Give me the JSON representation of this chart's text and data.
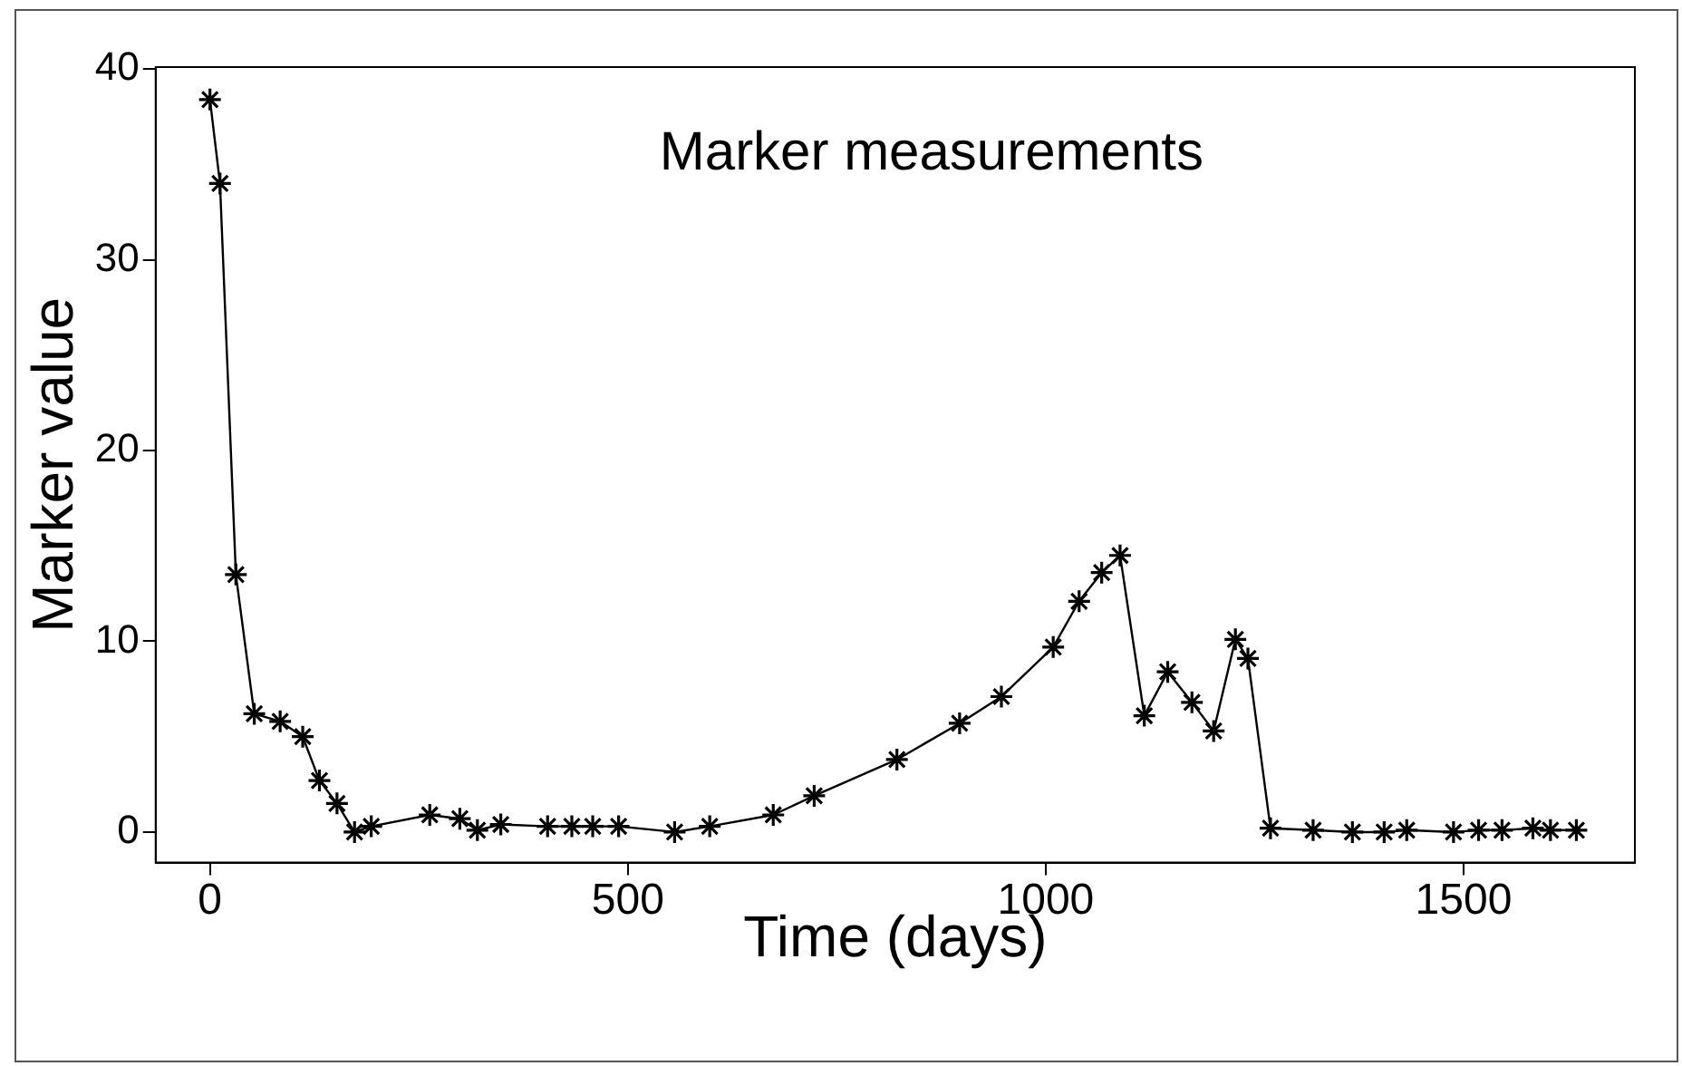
{
  "chart_data": {
    "type": "line",
    "title": "Marker measurements",
    "xlabel": "Time (days)",
    "ylabel": "Marker value",
    "xlim": [
      -65,
      1705
    ],
    "ylim": [
      -1.6,
      40.1
    ],
    "xticks": [
      0,
      500,
      1000,
      1500
    ],
    "yticks": [
      0,
      10,
      20,
      30,
      40
    ],
    "grid": false,
    "legend": false,
    "marker": "cross",
    "line_style": "solid",
    "series": [
      {
        "color": "#000000",
        "x": [
          0,
          12,
          31,
          53,
          84,
          111,
          131,
          152,
          173,
          193,
          263,
          299,
          320,
          348,
          404,
          433,
          458,
          489,
          556,
          598,
          674,
          723,
          822,
          897,
          947,
          1009,
          1040,
          1067,
          1089,
          1118,
          1146,
          1175,
          1201,
          1227,
          1242,
          1269,
          1320,
          1367,
          1405,
          1432,
          1488,
          1518,
          1546,
          1583,
          1604,
          1635
        ],
        "values": [
          38.4,
          34.0,
          13.5,
          6.2,
          5.8,
          5.0,
          2.7,
          1.5,
          0,
          0.3,
          0.9,
          0.7,
          0.1,
          0.4,
          0.3,
          0.3,
          0.3,
          0.3,
          0,
          0.3,
          0.9,
          1.9,
          3.8,
          5.7,
          7.1,
          9.7,
          12.1,
          13.6,
          14.5,
          6.1,
          8.4,
          6.8,
          5.3,
          10.1,
          9.1,
          0.2,
          0.1,
          0,
          0,
          0.1,
          0,
          0.1,
          0.1,
          0.2,
          0.1,
          0.1
        ]
      }
    ]
  }
}
